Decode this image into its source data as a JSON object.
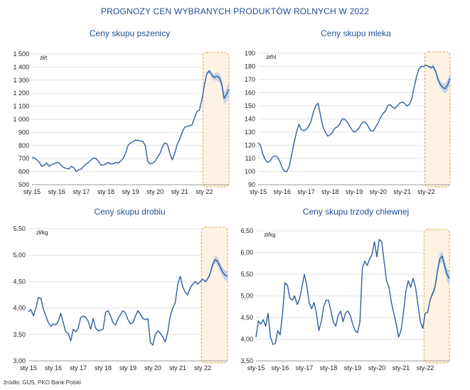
{
  "title": "PROGNOZY CEN WYBRANYCH PRODUKTÓW ROLNYCH W 2022",
  "source": "źródło: GUS, PKO Bank Polski",
  "colors": {
    "title": "#1f4e96",
    "line": "#2f5f9e",
    "band": "#b7cbe6",
    "forecast_fill": "#fdf3e4",
    "forecast_border": "#e0a050",
    "grid": "#e2e2e2"
  },
  "chart_data": [
    {
      "type": "line",
      "title": "Ceny skupu pszenicy",
      "unit": "zł/t",
      "ylim": [
        500,
        1500
      ],
      "yticks": [
        500,
        600,
        700,
        800,
        900,
        1000,
        1100,
        1200,
        1300,
        1400,
        1500
      ],
      "ytick_labels": [
        "500",
        "600",
        "700",
        "800",
        "900",
        "1 000",
        "1 100",
        "1 200",
        "1 300",
        "1 400",
        "1 500"
      ],
      "xlim": [
        2015.0,
        2023.0
      ],
      "xticks": [
        2015,
        2016,
        2017,
        2018,
        2019,
        2020,
        2021,
        2022
      ],
      "xtick_labels": [
        "sty 15",
        "sty 16",
        "sty 17",
        "sty 18",
        "sty 19",
        "sty 20",
        "sty 21",
        "sty 22"
      ],
      "forecast_range": [
        2021.95,
        2023.0
      ],
      "x": [
        2015.0,
        2015.1,
        2015.2,
        2015.3,
        2015.4,
        2015.5,
        2015.6,
        2015.7,
        2015.8,
        2015.9,
        2016.0,
        2016.1,
        2016.2,
        2016.3,
        2016.4,
        2016.5,
        2016.6,
        2016.7,
        2016.8,
        2016.9,
        2017.0,
        2017.1,
        2017.2,
        2017.3,
        2017.4,
        2017.5,
        2017.6,
        2017.7,
        2017.8,
        2017.9,
        2018.0,
        2018.1,
        2018.2,
        2018.3,
        2018.4,
        2018.5,
        2018.6,
        2018.7,
        2018.8,
        2018.9,
        2019.0,
        2019.1,
        2019.2,
        2019.3,
        2019.4,
        2019.5,
        2019.6,
        2019.7,
        2019.8,
        2019.9,
        2020.0,
        2020.1,
        2020.2,
        2020.3,
        2020.4,
        2020.5,
        2020.6,
        2020.7,
        2020.8,
        2020.9,
        2021.0,
        2021.1,
        2021.2,
        2021.3,
        2021.4,
        2021.5,
        2021.6,
        2021.7,
        2021.8,
        2021.9,
        2022.0
      ],
      "values": [
        710,
        705,
        690,
        670,
        640,
        650,
        665,
        640,
        655,
        660,
        670,
        665,
        645,
        630,
        625,
        620,
        640,
        630,
        600,
        615,
        620,
        640,
        660,
        670,
        690,
        705,
        700,
        680,
        650,
        650,
        660,
        670,
        660,
        660,
        670,
        665,
        680,
        700,
        740,
        800,
        820,
        830,
        840,
        840,
        835,
        830,
        800,
        680,
        660,
        665,
        680,
        710,
        740,
        790,
        820,
        810,
        740,
        690,
        740,
        810,
        850,
        900,
        940,
        945,
        950,
        960,
        1010,
        1060,
        1070,
        1150,
        1260
      ],
      "forecast_x": [
        2022.0,
        2022.1,
        2022.2,
        2022.3,
        2022.4,
        2022.5,
        2022.6,
        2022.7,
        2022.8,
        2022.9,
        2023.0
      ],
      "forecast_values": [
        1260,
        1350,
        1370,
        1340,
        1320,
        1330,
        1320,
        1280,
        1160,
        1190,
        1230
      ],
      "forecast_band": [
        0,
        10,
        15,
        20,
        25,
        30,
        35,
        40,
        45,
        50,
        55
      ]
    },
    {
      "type": "line",
      "title": "Ceny skupu mleka",
      "unit": "zł/hl",
      "ylim": [
        90,
        190
      ],
      "yticks": [
        90,
        100,
        110,
        120,
        130,
        140,
        150,
        160,
        170,
        180,
        190
      ],
      "ytick_labels": [
        "90",
        "100",
        "110",
        "120",
        "130",
        "140",
        "150",
        "160",
        "170",
        "180",
        "190"
      ],
      "xlim": [
        2015.0,
        2023.0
      ],
      "xticks": [
        2015,
        2016,
        2017,
        2018,
        2019,
        2020,
        2021,
        2022
      ],
      "xtick_labels": [
        "sty-15",
        "sty-16",
        "sty-17",
        "sty-18",
        "sty-19",
        "sty-20",
        "sty-21",
        "sty-22"
      ],
      "forecast_range": [
        2021.95,
        2023.0
      ],
      "x": [
        2015.0,
        2015.1,
        2015.2,
        2015.3,
        2015.4,
        2015.5,
        2015.6,
        2015.7,
        2015.8,
        2015.9,
        2016.0,
        2016.1,
        2016.2,
        2016.3,
        2016.4,
        2016.5,
        2016.6,
        2016.7,
        2016.8,
        2016.9,
        2017.0,
        2017.1,
        2017.2,
        2017.3,
        2017.4,
        2017.5,
        2017.6,
        2017.7,
        2017.8,
        2017.9,
        2018.0,
        2018.1,
        2018.2,
        2018.3,
        2018.4,
        2018.5,
        2018.6,
        2018.7,
        2018.8,
        2018.9,
        2019.0,
        2019.1,
        2019.2,
        2019.3,
        2019.4,
        2019.5,
        2019.6,
        2019.7,
        2019.8,
        2019.9,
        2020.0,
        2020.1,
        2020.2,
        2020.3,
        2020.4,
        2020.5,
        2020.6,
        2020.7,
        2020.8,
        2020.9,
        2021.0,
        2021.1,
        2021.2,
        2021.3,
        2021.4,
        2021.5,
        2021.6,
        2021.7,
        2021.8,
        2021.9,
        2022.0
      ],
      "values": [
        122,
        120,
        113,
        109,
        107,
        108,
        111,
        112,
        111,
        108,
        103,
        100,
        100,
        104,
        113,
        122,
        130,
        136,
        132,
        131,
        132,
        134,
        138,
        145,
        150,
        152,
        143,
        134,
        130,
        127,
        128,
        130,
        133,
        134,
        136,
        140,
        140,
        138,
        135,
        132,
        130,
        131,
        133,
        136,
        138,
        137,
        134,
        131,
        131,
        134,
        137,
        141,
        144,
        146,
        150,
        151,
        149,
        148,
        150,
        152,
        153,
        152,
        150,
        151,
        155,
        164,
        172,
        178,
        180,
        180,
        181
      ],
      "forecast_x": [
        2022.0,
        2022.1,
        2022.2,
        2022.3,
        2022.4,
        2022.5,
        2022.6,
        2022.7,
        2022.8,
        2022.9,
        2023.0
      ],
      "forecast_values": [
        181,
        180,
        179,
        180,
        176,
        170,
        166,
        164,
        163,
        166,
        171
      ],
      "forecast_band": [
        0,
        0.8,
        1.2,
        1.6,
        2.0,
        2.4,
        2.8,
        3.2,
        3.6,
        4.0,
        4.4
      ]
    },
    {
      "type": "line",
      "title": "Ceny skupu drobiu",
      "unit": "zł/kg",
      "ylim": [
        3.0,
        5.5
      ],
      "yticks": [
        3.0,
        3.5,
        4.0,
        4.5,
        5.0,
        5.5
      ],
      "ytick_labels": [
        "3,00",
        "3,50",
        "4,00",
        "4,50",
        "5,00",
        "5,50"
      ],
      "xlim": [
        2015.0,
        2023.0
      ],
      "xticks": [
        2015,
        2016,
        2017,
        2018,
        2019,
        2020,
        2021,
        2022
      ],
      "xtick_labels": [
        "sty 15",
        "sty 16",
        "sty 17",
        "sty 18",
        "sty 19",
        "sty 20",
        "sty 21",
        "sty 22"
      ],
      "forecast_range": [
        2021.95,
        2023.0
      ],
      "x": [
        2015.0,
        2015.1,
        2015.2,
        2015.3,
        2015.4,
        2015.5,
        2015.6,
        2015.7,
        2015.8,
        2015.9,
        2016.0,
        2016.1,
        2016.2,
        2016.3,
        2016.4,
        2016.5,
        2016.6,
        2016.7,
        2016.8,
        2016.9,
        2017.0,
        2017.1,
        2017.2,
        2017.3,
        2017.4,
        2017.5,
        2017.6,
        2017.7,
        2017.8,
        2017.9,
        2018.0,
        2018.1,
        2018.2,
        2018.3,
        2018.4,
        2018.5,
        2018.6,
        2018.7,
        2018.8,
        2018.9,
        2019.0,
        2019.1,
        2019.2,
        2019.3,
        2019.4,
        2019.5,
        2019.6,
        2019.7,
        2019.8,
        2019.9,
        2020.0,
        2020.1,
        2020.2,
        2020.3,
        2020.4,
        2020.5,
        2020.6,
        2020.7,
        2020.8,
        2020.9,
        2021.0,
        2021.1,
        2021.2,
        2021.3,
        2021.4,
        2021.5,
        2021.6,
        2021.7,
        2021.8,
        2021.9,
        2022.0
      ],
      "values": [
        3.93,
        3.97,
        3.85,
        4.0,
        4.2,
        4.18,
        3.98,
        3.85,
        3.72,
        3.65,
        3.7,
        3.68,
        3.75,
        3.9,
        3.72,
        3.55,
        3.52,
        3.38,
        3.6,
        3.55,
        3.62,
        3.82,
        3.85,
        3.83,
        3.75,
        3.6,
        3.8,
        3.62,
        3.57,
        3.58,
        3.6,
        3.92,
        3.95,
        3.85,
        3.72,
        3.68,
        3.8,
        3.88,
        3.95,
        3.9,
        3.78,
        3.7,
        3.72,
        3.85,
        3.95,
        3.88,
        3.8,
        3.78,
        3.8,
        3.35,
        3.3,
        3.5,
        3.57,
        3.52,
        3.45,
        3.36,
        3.55,
        3.85,
        4.0,
        4.1,
        4.45,
        4.6,
        4.4,
        4.3,
        4.25,
        4.38,
        4.45,
        4.5,
        4.45,
        4.5,
        4.55
      ],
      "forecast_x": [
        2022.0,
        2022.1,
        2022.2,
        2022.3,
        2022.4,
        2022.5,
        2022.6,
        2022.7,
        2022.8,
        2022.9,
        2023.0
      ],
      "forecast_values": [
        4.55,
        4.5,
        4.55,
        4.65,
        4.82,
        4.92,
        4.88,
        4.78,
        4.68,
        4.62,
        4.6
      ],
      "forecast_band": [
        0,
        0.015,
        0.03,
        0.045,
        0.06,
        0.07,
        0.08,
        0.085,
        0.09,
        0.095,
        0.1
      ]
    },
    {
      "type": "line",
      "title": "Ceny skupu trzody chlewnej",
      "unit": "zł/kg",
      "ylim": [
        3.5,
        6.5
      ],
      "yticks": [
        3.5,
        4.0,
        4.5,
        5.0,
        5.5,
        6.0,
        6.5
      ],
      "ytick_labels": [
        "3,50",
        "4,00",
        "4,50",
        "5,00",
        "5,50",
        "6,00",
        "6,50"
      ],
      "xlim": [
        2015.0,
        2023.0
      ],
      "xticks": [
        2015,
        2016,
        2017,
        2018,
        2019,
        2020,
        2021,
        2022
      ],
      "xtick_labels": [
        "sty-15",
        "sty-16",
        "sty-17",
        "sty-18",
        "sty-19",
        "sty-20",
        "sty-21",
        "sty-22"
      ],
      "forecast_range": [
        2021.95,
        2023.0
      ],
      "x": [
        2015.0,
        2015.1,
        2015.2,
        2015.3,
        2015.4,
        2015.5,
        2015.6,
        2015.7,
        2015.8,
        2015.9,
        2016.0,
        2016.1,
        2016.2,
        2016.3,
        2016.4,
        2016.5,
        2016.6,
        2016.7,
        2016.8,
        2016.9,
        2017.0,
        2017.1,
        2017.2,
        2017.3,
        2017.4,
        2017.5,
        2017.6,
        2017.7,
        2017.8,
        2017.9,
        2018.0,
        2018.1,
        2018.2,
        2018.3,
        2018.4,
        2018.5,
        2018.6,
        2018.7,
        2018.8,
        2018.9,
        2019.0,
        2019.1,
        2019.2,
        2019.3,
        2019.4,
        2019.5,
        2019.6,
        2019.7,
        2019.8,
        2019.9,
        2020.0,
        2020.1,
        2020.2,
        2020.3,
        2020.4,
        2020.5,
        2020.6,
        2020.7,
        2020.8,
        2020.9,
        2021.0,
        2021.1,
        2021.2,
        2021.3,
        2021.4,
        2021.5,
        2021.6,
        2021.7,
        2021.8,
        2021.9,
        2022.0
      ],
      "values": [
        4.05,
        4.42,
        4.35,
        4.45,
        4.3,
        4.6,
        4.05,
        3.88,
        3.9,
        4.2,
        4.1,
        4.6,
        5.3,
        5.25,
        4.95,
        4.9,
        5.0,
        4.8,
        4.92,
        5.2,
        5.5,
        5.25,
        4.85,
        4.7,
        4.85,
        4.6,
        4.2,
        4.4,
        4.75,
        4.9,
        4.9,
        4.65,
        4.4,
        4.3,
        4.55,
        4.65,
        4.4,
        4.6,
        4.65,
        4.55,
        4.35,
        4.2,
        4.15,
        4.4,
        5.65,
        5.8,
        5.7,
        5.85,
        5.95,
        6.25,
        5.9,
        6.3,
        6.25,
        5.8,
        5.35,
        5.2,
        4.85,
        4.6,
        4.35,
        4.05,
        4.2,
        4.6,
        5.1,
        5.35,
        5.2,
        5.4,
        5.2,
        4.8,
        4.4,
        4.25,
        4.6
      ],
      "forecast_x": [
        2022.0,
        2022.1,
        2022.2,
        2022.3,
        2022.4,
        2022.5,
        2022.6,
        2022.7,
        2022.8,
        2022.9,
        2023.0
      ],
      "forecast_values": [
        4.6,
        4.62,
        4.9,
        5.05,
        5.18,
        5.55,
        5.85,
        5.92,
        5.7,
        5.5,
        5.4
      ],
      "forecast_band": [
        0,
        0.02,
        0.04,
        0.06,
        0.08,
        0.1,
        0.12,
        0.13,
        0.14,
        0.15,
        0.16
      ]
    }
  ]
}
